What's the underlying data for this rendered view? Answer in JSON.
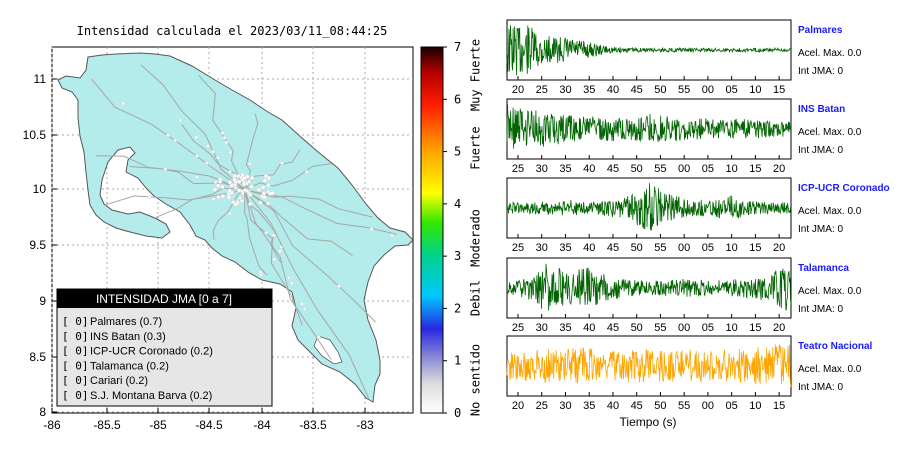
{
  "map_panel": {
    "title": "Intensidad calculada el 2023/03/11_08:44:25",
    "lat_ticks": [
      "11",
      "10.5",
      "10",
      "9.5",
      "9",
      "8.5",
      "8"
    ],
    "lon_ticks": [
      "-86",
      "-85.5",
      "-85",
      "-84.5",
      "-84",
      "-83.5",
      "-83"
    ],
    "land_color": "#b4ecec"
  },
  "legend": {
    "title": "INTENSIDAD JMA [0 a 7]",
    "entries": [
      {
        "value": "[ 0]",
        "label": "Palmares (0.7)"
      },
      {
        "value": "[ 0]",
        "label": "INS Batan (0.3)"
      },
      {
        "value": "[ 0]",
        "label": "ICP-UCR Coronado (0.2)"
      },
      {
        "value": "[ 0]",
        "label": "Talamanca (0.2)"
      },
      {
        "value": "[ 0]",
        "label": "Cariari (0.2)"
      },
      {
        "value": "[ 0]",
        "label": "S.J. Montana Barva (0.2)"
      }
    ]
  },
  "colorbar": {
    "ticks": [
      "7",
      "6",
      "5",
      "4",
      "3",
      "2",
      "1",
      "0"
    ],
    "labels": [
      "Muy Fuerte",
      "Fuerte",
      "Moderado",
      "Debil",
      "No sentido"
    ]
  },
  "chart_data": [
    {
      "type": "line",
      "station": "Palmares",
      "color": "#006400",
      "x_ticks": [
        "20",
        "25",
        "30",
        "35",
        "40",
        "45",
        "50",
        "55",
        "00",
        "05",
        "10",
        "15"
      ],
      "acel_label": "Acel. Max. 0.0",
      "int_label": "Int JMA: 0",
      "envelope": [
        1,
        0.9,
        0.5,
        0.45,
        0.3,
        0.12,
        0.08,
        0.07,
        0.07,
        0.07,
        0.07,
        0.07,
        0.07,
        0.07,
        0.07
      ]
    },
    {
      "type": "line",
      "station": "INS Batan",
      "color": "#006400",
      "x_ticks": [
        "25",
        "30",
        "35",
        "40",
        "45",
        "50",
        "55",
        "00",
        "05",
        "10",
        "15",
        "20"
      ],
      "acel_label": "Acel. Max. 0.0",
      "int_label": "Int JMA: 0",
      "envelope": [
        0.9,
        0.75,
        0.6,
        0.5,
        0.45,
        0.45,
        0.4,
        0.55,
        0.45,
        0.4,
        0.38,
        0.35,
        0.35,
        0.3,
        0.3
      ]
    },
    {
      "type": "line",
      "station": "ICP-UCR Coronado",
      "color": "#006400",
      "x_ticks": [
        "25",
        "30",
        "35",
        "40",
        "45",
        "50",
        "55",
        "00",
        "05",
        "10",
        "15",
        "20"
      ],
      "acel_label": "Acel. Max. 0.0",
      "int_label": "Int JMA: 0",
      "envelope": [
        0.2,
        0.2,
        0.25,
        0.3,
        0.2,
        0.3,
        0.45,
        0.9,
        0.5,
        0.3,
        0.3,
        0.45,
        0.25,
        0.2,
        0.2
      ]
    },
    {
      "type": "line",
      "station": "Talamanca",
      "color": "#006400",
      "x_ticks": [
        "25",
        "30",
        "35",
        "40",
        "45",
        "50",
        "55",
        "00",
        "05",
        "10",
        "15",
        "20"
      ],
      "acel_label": "Acel. Max. 0.0",
      "int_label": "Int JMA: 0",
      "envelope": [
        0.2,
        0.4,
        0.95,
        0.6,
        0.75,
        0.45,
        0.3,
        0.25,
        0.3,
        0.35,
        0.25,
        0.3,
        0.35,
        0.55,
        0.9
      ]
    },
    {
      "type": "line",
      "station": "Teatro Nacional",
      "color": "#ffa500",
      "x_ticks": [
        "20",
        "25",
        "30",
        "35",
        "40",
        "45",
        "50",
        "55",
        "00",
        "05",
        "10",
        "15"
      ],
      "acel_label": "Acel. Max. 0.0",
      "int_label": "Int JMA: 0",
      "envelope": [
        0.5,
        0.55,
        0.6,
        0.6,
        0.7,
        0.55,
        0.6,
        0.6,
        0.55,
        0.6,
        0.55,
        0.6,
        0.65,
        0.85,
        0.8
      ],
      "xlabel": "Tiempo (s)"
    }
  ]
}
